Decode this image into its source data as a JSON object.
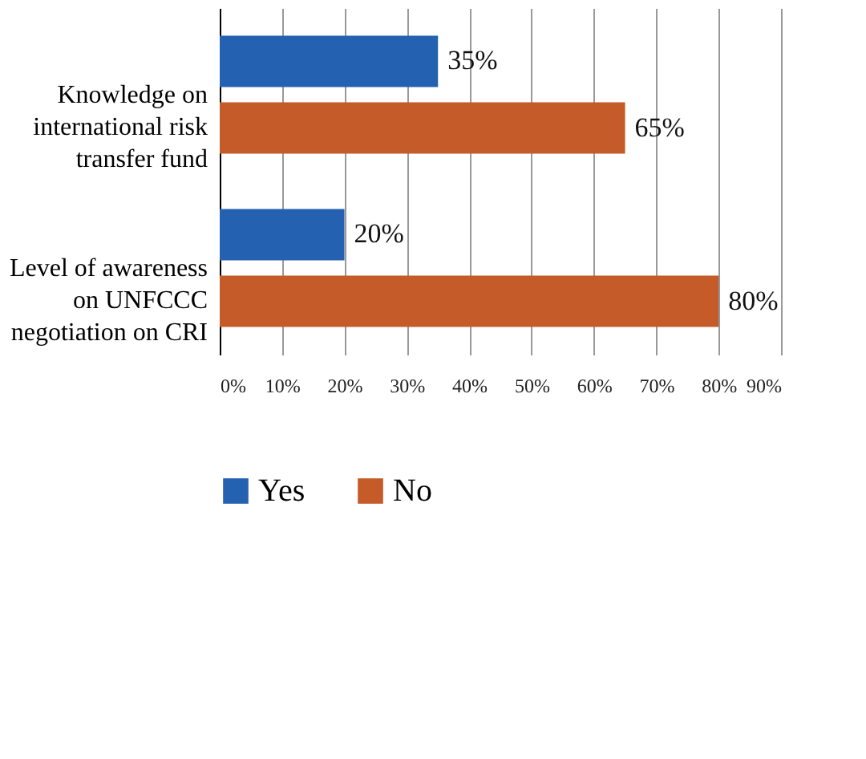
{
  "chart_data": {
    "type": "bar",
    "orientation": "horizontal",
    "categories": [
      "Knowledge on international risk transfer fund",
      "Level of awareness on UNFCCC negotiation on CRI"
    ],
    "series": [
      {
        "name": "Yes",
        "color": "#2461b0",
        "values": [
          35,
          20
        ]
      },
      {
        "name": "No",
        "color": "#c45b29",
        "values": [
          65,
          80
        ]
      }
    ],
    "xlim": [
      0,
      90
    ],
    "xticks": [
      {
        "value": 0,
        "label": "0%"
      },
      {
        "value": 10,
        "label": "10%"
      },
      {
        "value": 20,
        "label": "20%"
      },
      {
        "value": 30,
        "label": "30%"
      },
      {
        "value": 40,
        "label": "40%"
      },
      {
        "value": 50,
        "label": "50%"
      },
      {
        "value": 60,
        "label": "60%"
      },
      {
        "value": 70,
        "label": "70%"
      },
      {
        "value": 80,
        "label": "80%"
      },
      {
        "value": 90,
        "label": "90%"
      }
    ],
    "value_labels": [
      [
        "35%",
        "20%"
      ],
      [
        "65%",
        "80%"
      ]
    ],
    "grid": "x",
    "legend": "bottom"
  }
}
